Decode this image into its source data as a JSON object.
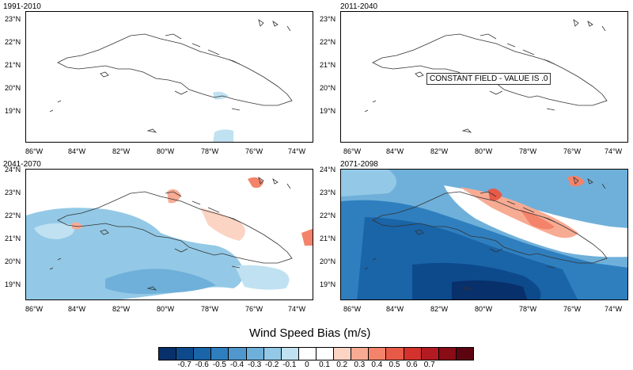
{
  "panels": [
    {
      "title": "1991-2010"
    },
    {
      "title": "2011-2040",
      "annotation": "CONSTANT FIELD - VALUE IS .0"
    },
    {
      "title": "2041-2070"
    },
    {
      "title": "2071-2098"
    }
  ],
  "lat_labels": [
    "24°N",
    "23°N",
    "22°N",
    "21°N",
    "20°N",
    "19°N"
  ],
  "lon_labels": [
    "86°W",
    "84°W",
    "82°W",
    "80°W",
    "78°W",
    "76°W",
    "74°W"
  ],
  "colorbar": {
    "title": "Wind Speed Bias (m/s)",
    "labels": [
      "-0.7",
      "-0.6",
      "-0.5",
      "-0.4",
      "-0.3",
      "-0.2",
      "-0.1",
      "0",
      "0.1",
      "0.2",
      "0.3",
      "0.4",
      "0.5",
      "0.6",
      "0.7"
    ],
    "colors": [
      "#08306b",
      "#0d4a8c",
      "#1a64a8",
      "#2f7fbf",
      "#4f97cc",
      "#6fb0da",
      "#93c9e6",
      "#c0e1f1",
      "#ffffff",
      "#ffffff",
      "#fcd4c4",
      "#f8ab93",
      "#f3836a",
      "#e85a48",
      "#d4322c",
      "#b41a22",
      "#8a0c16",
      "#5c0510"
    ]
  },
  "map": {
    "background": "#ffffff",
    "coast": "#333333"
  }
}
